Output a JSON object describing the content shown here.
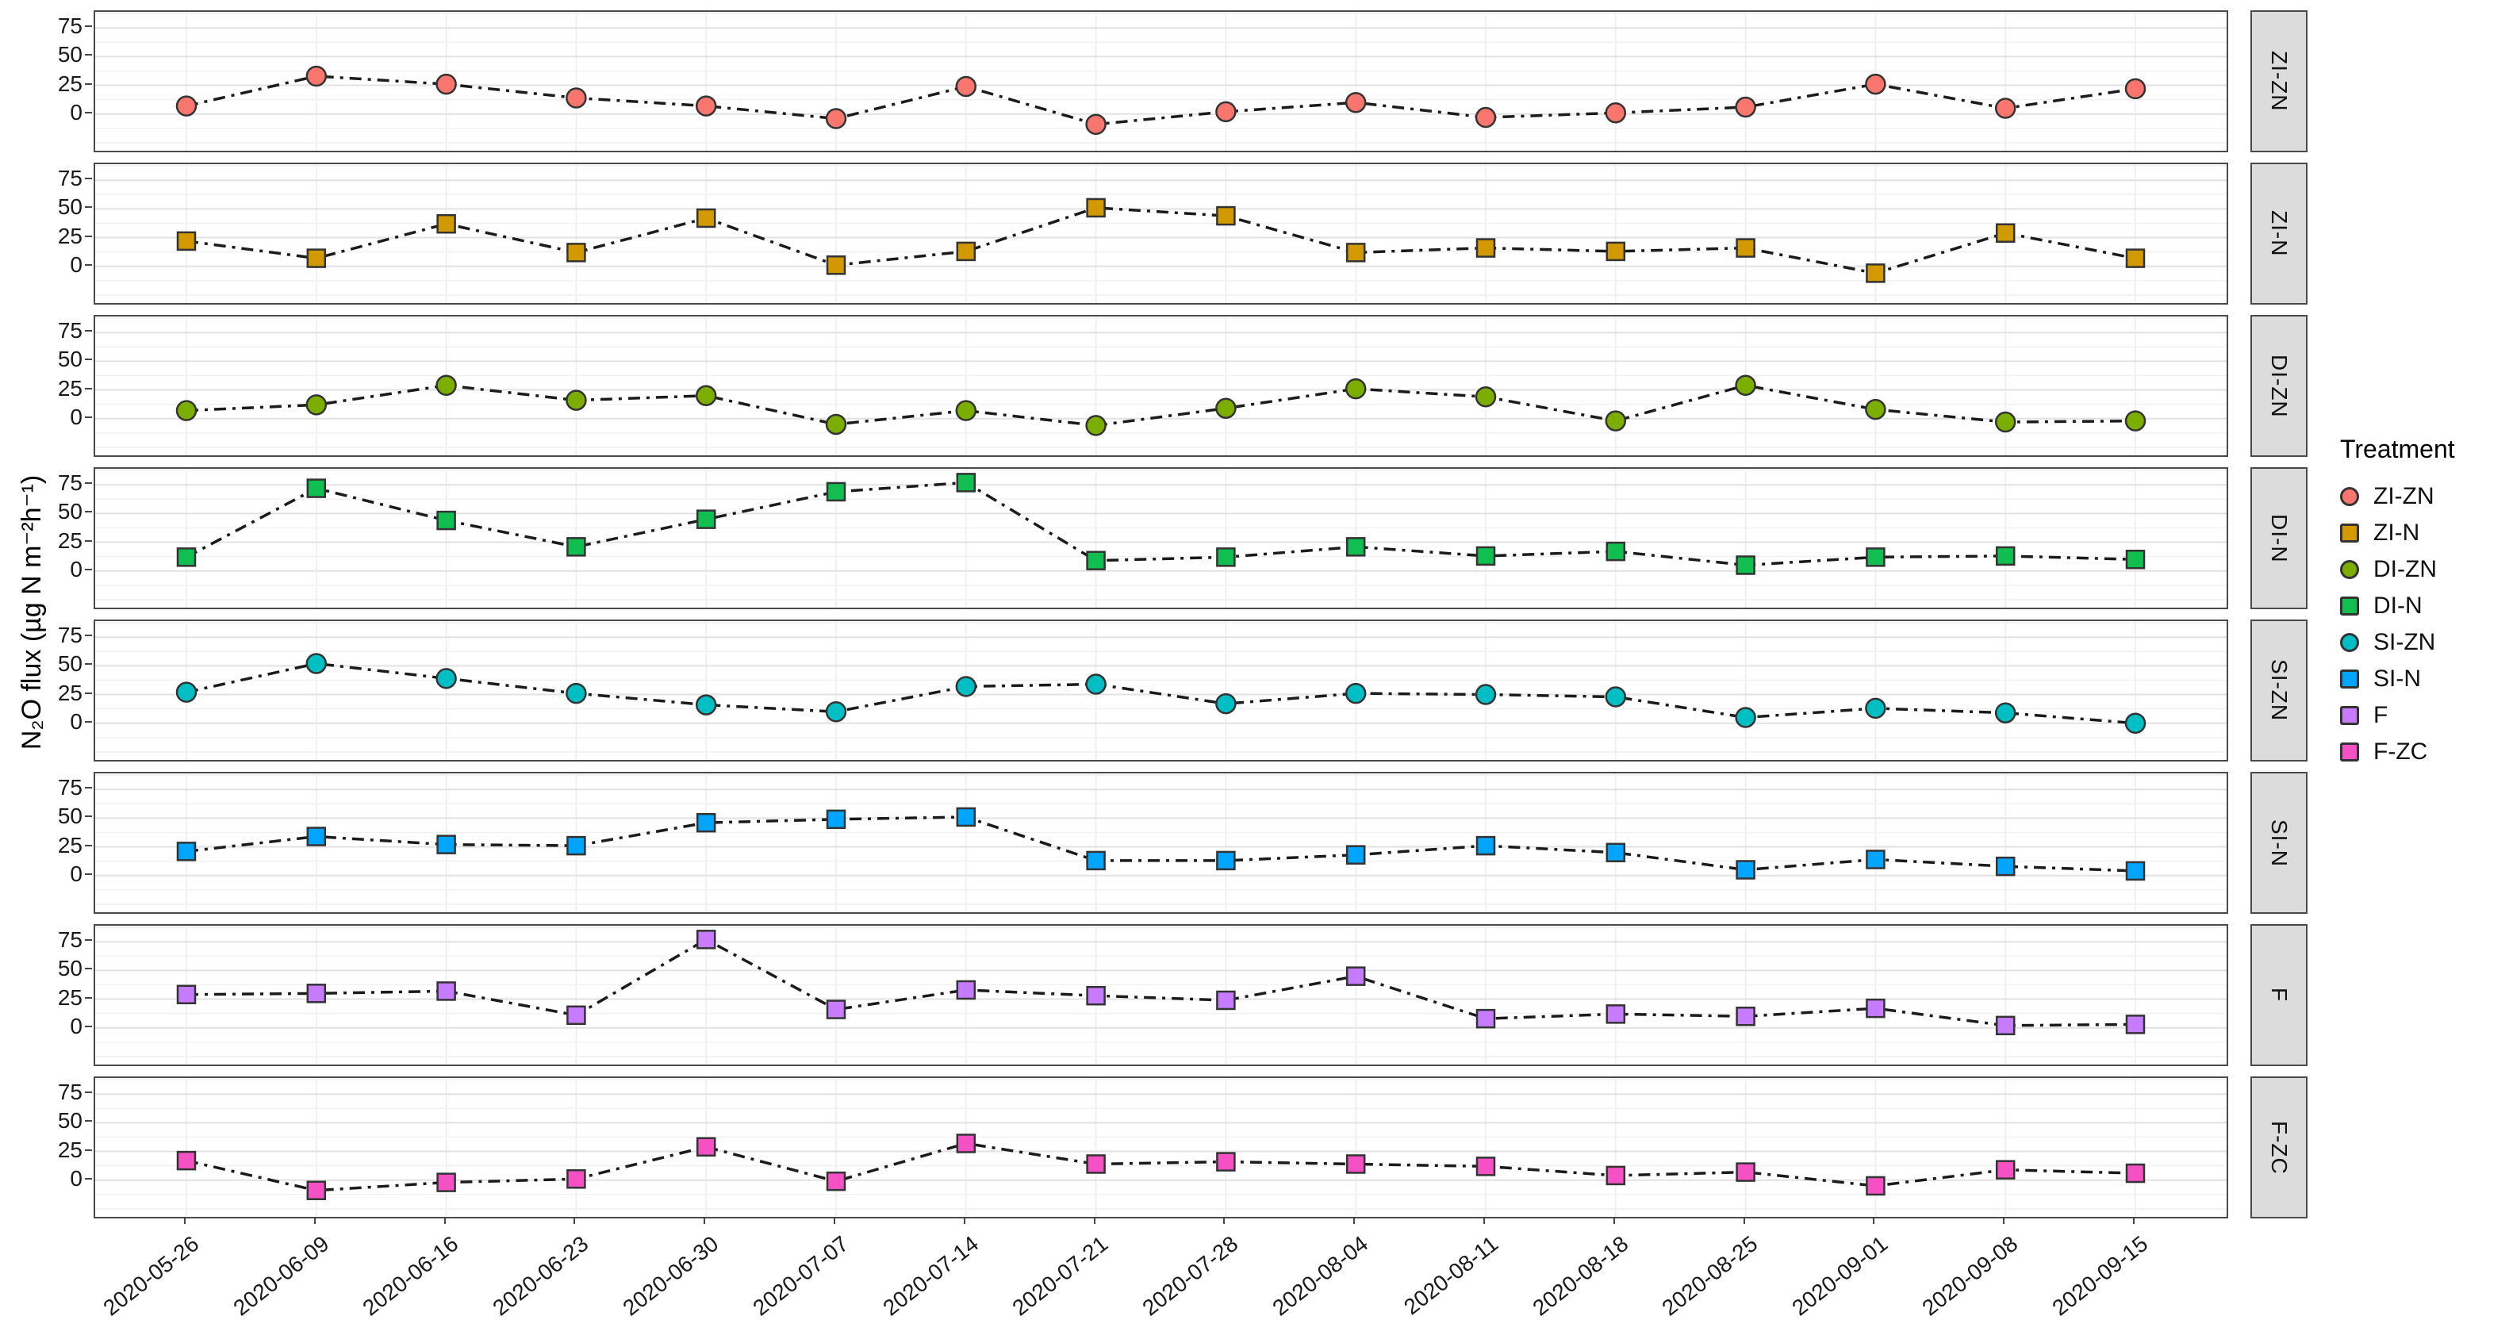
{
  "chart_data": {
    "type": "line",
    "title": "",
    "ylabel": "N₂O flux (µg N m⁻²h⁻¹)",
    "xlabel": "",
    "yticks": [
      0,
      25,
      50,
      75
    ],
    "ylim": [
      -32,
      89
    ],
    "grid": true,
    "legend_title": "Treatment",
    "legend_position": "right",
    "line_style": "black dash-dot",
    "x": [
      "2020-05-26",
      "2020-06-09",
      "2020-06-16",
      "2020-06-23",
      "2020-06-30",
      "2020-07-07",
      "2020-07-14",
      "2020-07-21",
      "2020-07-28",
      "2020-08-04",
      "2020-08-11",
      "2020-08-18",
      "2020-08-25",
      "2020-09-01",
      "2020-09-08",
      "2020-09-15"
    ],
    "facets": [
      {
        "label": "ZI-ZN",
        "color": "#F8766D",
        "shape": "circle",
        "values": [
          7,
          33,
          26,
          14,
          7,
          -4,
          24,
          -9,
          2,
          10,
          -3,
          1,
          6,
          26,
          5,
          22
        ]
      },
      {
        "label": "ZI-N",
        "color": "#D29A00",
        "shape": "square",
        "values": [
          22,
          7,
          37,
          12,
          42,
          1,
          13,
          51,
          44,
          12,
          16,
          13,
          16,
          -6,
          29,
          7
        ]
      },
      {
        "label": "DI-ZN",
        "color": "#7CAE00",
        "shape": "circle",
        "values": [
          7,
          12,
          29,
          16,
          20,
          -5,
          7,
          -6,
          9,
          26,
          19,
          -2,
          29,
          8,
          -3,
          -2
        ]
      },
      {
        "label": "DI-N",
        "color": "#11BE50",
        "shape": "square",
        "values": [
          12,
          72,
          44,
          21,
          45,
          69,
          77,
          9,
          12,
          21,
          13,
          17,
          5,
          12,
          13,
          10
        ]
      },
      {
        "label": "SI-ZN",
        "color": "#00BFC4",
        "shape": "circle",
        "values": [
          27,
          52,
          39,
          26,
          16,
          10,
          32,
          34,
          17,
          26,
          25,
          23,
          5,
          13,
          9,
          0
        ]
      },
      {
        "label": "SI-N",
        "color": "#00A5FF",
        "shape": "square",
        "values": [
          21,
          34,
          27,
          26,
          46,
          49,
          51,
          13,
          13,
          18,
          26,
          20,
          5,
          14,
          8,
          4
        ]
      },
      {
        "label": "F",
        "color": "#C77CFF",
        "shape": "square",
        "values": [
          29,
          30,
          32,
          11,
          77,
          16,
          33,
          28,
          24,
          45,
          8,
          12,
          10,
          17,
          2,
          3
        ]
      },
      {
        "label": "F-ZC",
        "color": "#F551C5",
        "shape": "square",
        "values": [
          17,
          -9,
          -2,
          1,
          29,
          -1,
          32,
          14,
          16,
          14,
          12,
          4,
          7,
          -5,
          9,
          6
        ]
      }
    ]
  }
}
